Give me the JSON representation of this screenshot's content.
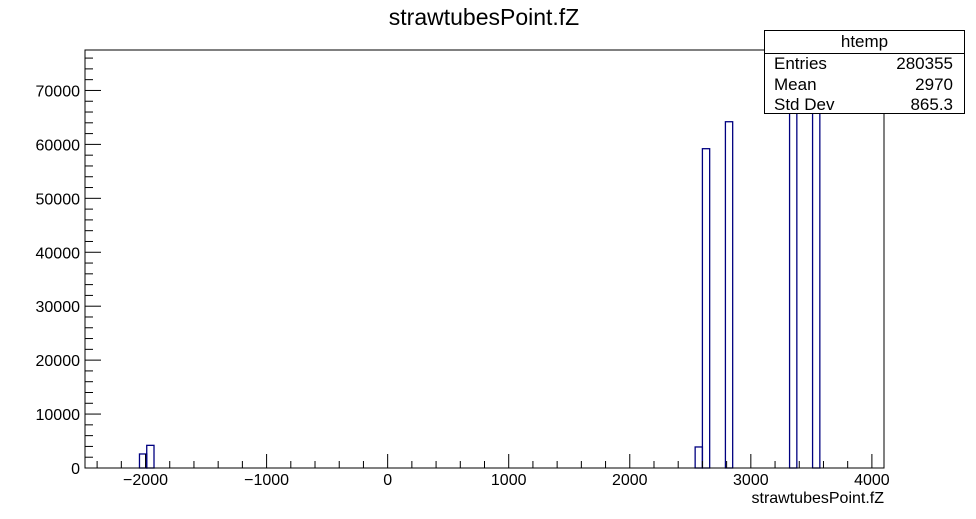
{
  "chart_data": {
    "type": "histogram",
    "title": "strawtubesPoint.fZ",
    "xlabel": "strawtubesPoint.fZ",
    "ylabel": "",
    "xlim": [
      -2500,
      4100
    ],
    "ylim": [
      0,
      77500
    ],
    "x_ticks": [
      -2000,
      -1000,
      0,
      1000,
      2000,
      3000,
      4000
    ],
    "x_tick_labels": [
      "−2000",
      "−1000",
      "0",
      "1000",
      "2000",
      "3000",
      "4000"
    ],
    "y_ticks": [
      0,
      10000,
      20000,
      30000,
      40000,
      50000,
      60000,
      70000
    ],
    "y_tick_labels": [
      "0",
      "10000",
      "20000",
      "30000",
      "40000",
      "50000",
      "60000",
      "70000"
    ],
    "line_color": "#000080",
    "bins": [
      {
        "x0": -2050,
        "x1": -1990,
        "y": 2600
      },
      {
        "x0": -1990,
        "x1": -1930,
        "y": 4200
      },
      {
        "x0": 2540,
        "x1": 2600,
        "y": 3900
      },
      {
        "x0": 2600,
        "x1": 2660,
        "y": 59200
      },
      {
        "x0": 2790,
        "x1": 2850,
        "y": 64200
      },
      {
        "x0": 3320,
        "x1": 3380,
        "y": 77500
      },
      {
        "x0": 3510,
        "x1": 3570,
        "y": 77500
      }
    ]
  },
  "stats_box": {
    "title": "htemp",
    "rows": [
      {
        "label": "Entries",
        "value": "280355"
      },
      {
        "label": "Mean",
        "value": "2970"
      },
      {
        "label": "Std Dev",
        "value": "865.3"
      }
    ]
  }
}
